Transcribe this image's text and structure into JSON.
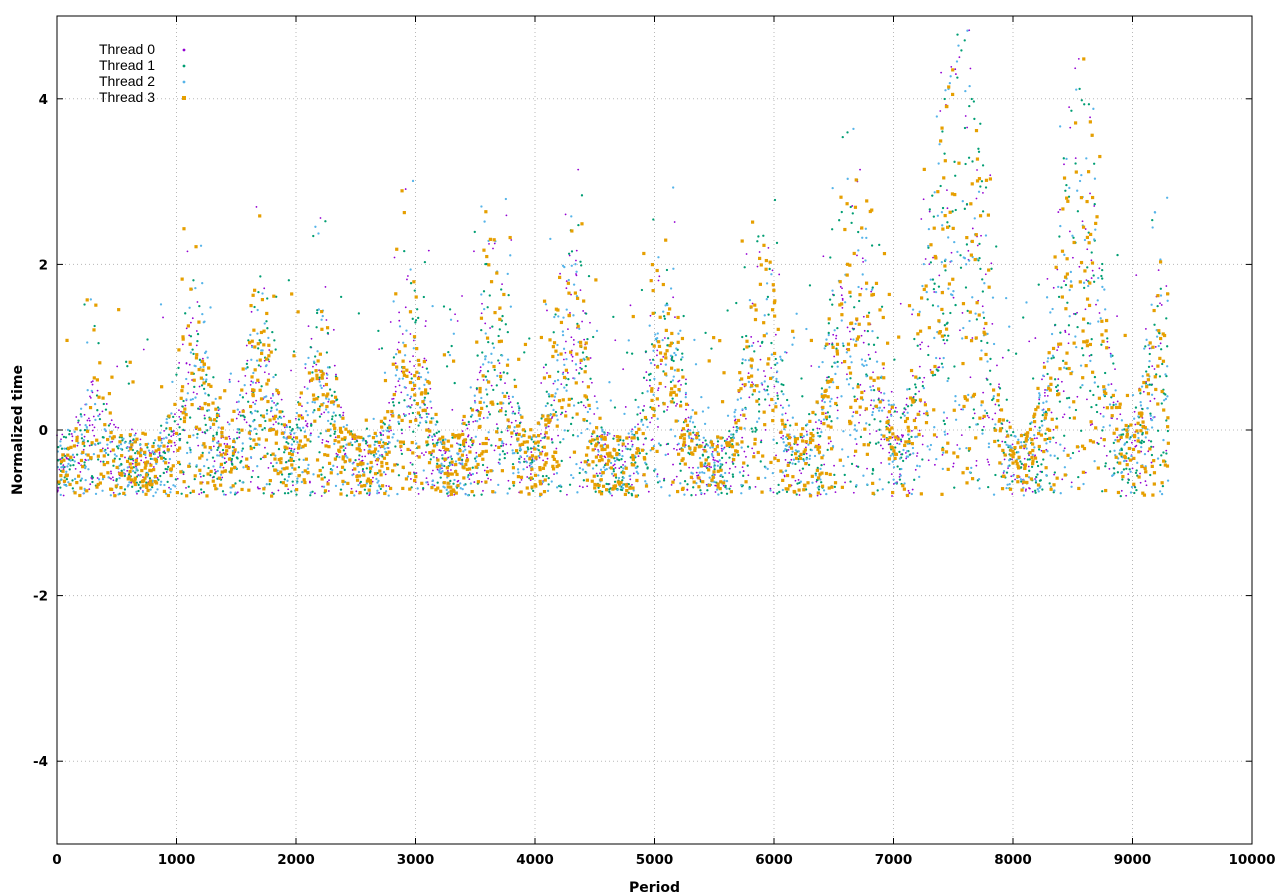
{
  "chart_data": {
    "type": "scatter",
    "title": "",
    "xlabel": "Period",
    "ylabel": "Normalized time",
    "xlim": [
      0,
      10000
    ],
    "ylim": [
      -5,
      5
    ],
    "x_ticks": [
      0,
      1000,
      2000,
      3000,
      4000,
      5000,
      6000,
      7000,
      8000,
      9000,
      10000
    ],
    "y_ticks": [
      -4,
      -2,
      0,
      2,
      4
    ],
    "x_tick_labels": [
      "0",
      "1000",
      "2000",
      "3000",
      "4000",
      "5000",
      "6000",
      "7000",
      "8000",
      "9000",
      "10000"
    ],
    "y_tick_labels": [
      "-4",
      "-2",
      "0",
      "2",
      "4"
    ],
    "grid": true,
    "legend_position": "top-left",
    "series": [
      {
        "name": "Thread 0",
        "color": "#9400d3",
        "marker": "plus-small"
      },
      {
        "name": "Thread 1",
        "color": "#009e73",
        "marker": "dot"
      },
      {
        "name": "Thread 2",
        "color": "#56b4e9",
        "marker": "dot"
      },
      {
        "name": "Thread 3",
        "color": "#e69f00",
        "marker": "square"
      }
    ],
    "x_range_of_data": [
      0,
      9300
    ],
    "baseline": -0.45,
    "floor": -0.8,
    "bursts": [
      {
        "center": 320,
        "peak": 0.6
      },
      {
        "center": 1150,
        "peak": 1.8
      },
      {
        "center": 1700,
        "peak": 1.9
      },
      {
        "center": 2200,
        "peak": 1.5
      },
      {
        "center": 2950,
        "peak": 2.0
      },
      {
        "center": 3650,
        "peak": 2.4
      },
      {
        "center": 4300,
        "peak": 2.7
      },
      {
        "center": 5080,
        "peak": 2.5
      },
      {
        "center": 5900,
        "peak": 2.6
      },
      {
        "center": 6650,
        "peak": 3.2
      },
      {
        "center": 7450,
        "peak": 4.3
      },
      {
        "center": 7700,
        "peak": 2.6
      },
      {
        "center": 8550,
        "peak": 4.6
      },
      {
        "center": 9250,
        "peak": 2.2
      }
    ]
  }
}
